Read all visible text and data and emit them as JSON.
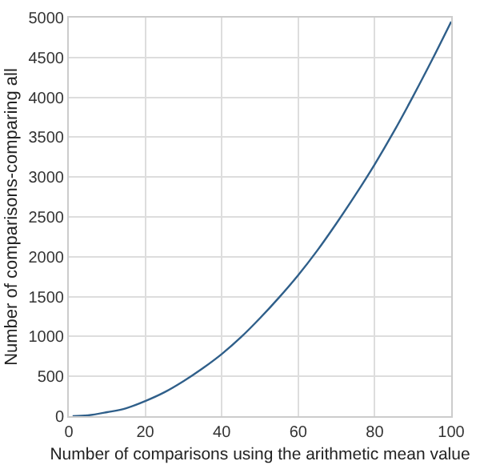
{
  "chart_data": {
    "type": "line",
    "xlabel": "Number of comparisons using the arithmetic mean value",
    "ylabel": "Number of comparisons-comparing all",
    "x": [
      1,
      5,
      10,
      15,
      20,
      25,
      30,
      35,
      40,
      45,
      50,
      55,
      60,
      65,
      70,
      75,
      80,
      85,
      90,
      95,
      100
    ],
    "series": [
      {
        "color": "#2f5f8a",
        "values": [
          0,
          10,
          50,
          100,
          190,
          300,
          440,
          600,
          780,
          990,
          1230,
          1490,
          1770,
          2080,
          2420,
          2780,
          3160,
          3570,
          4010,
          4470,
          4950
        ]
      }
    ],
    "xlim": [
      0,
      100
    ],
    "xticks": [
      0,
      20,
      40,
      60,
      80,
      100
    ],
    "ylim": [
      0,
      5000
    ],
    "yticks": [
      0,
      500,
      1000,
      1500,
      2000,
      2500,
      3000,
      3500,
      4000,
      4500,
      5000
    ],
    "grid": true,
    "marker": "none",
    "line_style": "solid"
  }
}
